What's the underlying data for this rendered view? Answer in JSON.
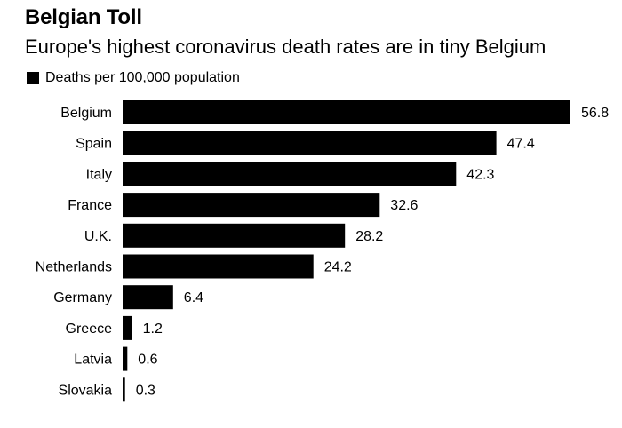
{
  "chart_data": {
    "type": "bar",
    "orientation": "horizontal",
    "title": "Belgian Toll",
    "subtitle": "Europe's highest coronavirus death rates are in tiny Belgium",
    "legend": [
      "Deaths per 100,000 population"
    ],
    "categories": [
      "Belgium",
      "Spain",
      "Italy",
      "France",
      "U.K.",
      "Netherlands",
      "Germany",
      "Greece",
      "Latvia",
      "Slovakia"
    ],
    "series": [
      {
        "name": "Deaths per 100,000 population",
        "values": [
          56.8,
          47.4,
          42.3,
          32.6,
          28.2,
          24.2,
          6.4,
          1.2,
          0.6,
          0.3
        ],
        "labels": [
          "56.8",
          "47.4",
          "42.3",
          "32.6",
          "28.2",
          "24.2",
          "6.4",
          "1.2",
          "0.6",
          "0.3"
        ]
      }
    ],
    "xlim": [
      0,
      56.8
    ],
    "color": "#000000",
    "grid": false
  }
}
